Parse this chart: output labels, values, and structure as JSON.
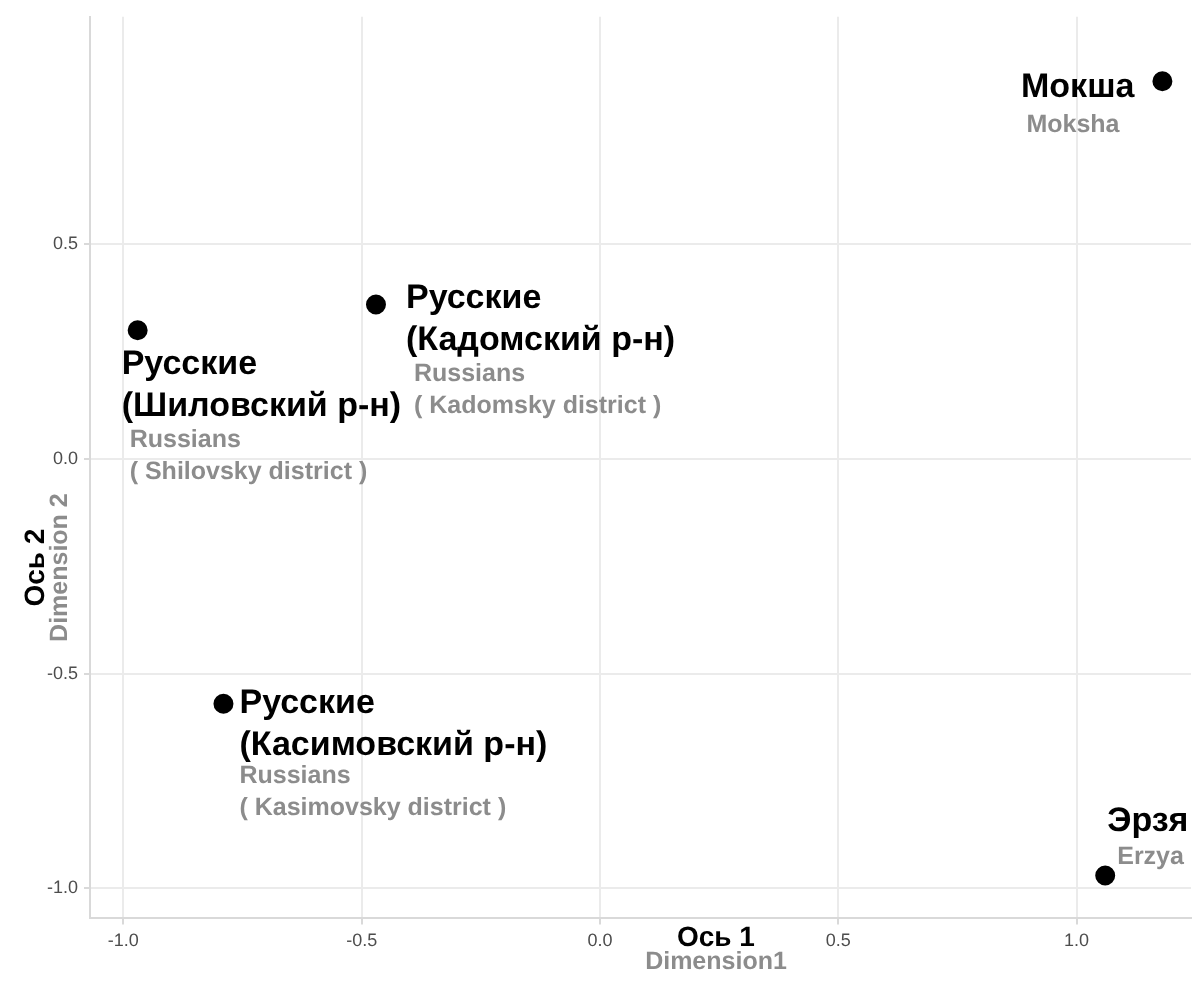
{
  "chart_data": {
    "type": "scatter",
    "xlabel": "Ось 1\nDimension1",
    "ylabel": "Ось 2\nDimension 2",
    "series": [
      {
        "color": "#000000",
        "x": [
          -0.97,
          -0.47,
          -0.79,
          1.18,
          1.06
        ],
        "values": [
          0.3,
          0.36,
          -0.57,
          0.88,
          -0.97
        ]
      }
    ],
    "xlim": [
      -1.07,
      1.24
    ],
    "ylim": [
      -1.07,
      1.03
    ],
    "xticks": [
      {
        "value": -1,
        "label": "-1.0"
      },
      -0.5,
      {
        "value": 0,
        "label": "0.0"
      },
      0.5,
      {
        "value": 1,
        "label": "1.0"
      }
    ],
    "yticks": [
      {
        "value": -1,
        "label": "-1.0"
      },
      -0.5,
      {
        "value": 0,
        "label": "0.0"
      },
      0.5
    ],
    "grid": true,
    "legend": false,
    "marker": "circle",
    "annotations": [
      {
        "text": "Русские\n(Шиловский р-н)",
        "x": -0.97,
        "y": 0.3
      },
      "Russians\n( Shilovsky district )",
      {
        "text": "Русские\n(Кадомский р-н)",
        "x": -0.47,
        "y": 0.36
      },
      {
        "text": "Russians\n( Kadomsky district )",
        "x": -0.47,
        "y": 0.36
      },
      {
        "text": "Русские\n(Касимовский р-н)",
        "x": -0.79,
        "y": -0.57
      },
      {
        "text": "Russians\n( Kasimovsky district )",
        "x": -0.79,
        "y": -0.57
      },
      {
        "text": "Мокша",
        "x": 1.18,
        "y": 0.88
      },
      {
        "text": "Moksha",
        "x": 1.18,
        "y": 0.88
      },
      {
        "text": "Эрзя",
        "x": 1.06,
        "y": -0.97
      },
      {
        "text": "Erzya",
        "x": 1.06,
        "y": -0.97
      }
    ]
  }
}
